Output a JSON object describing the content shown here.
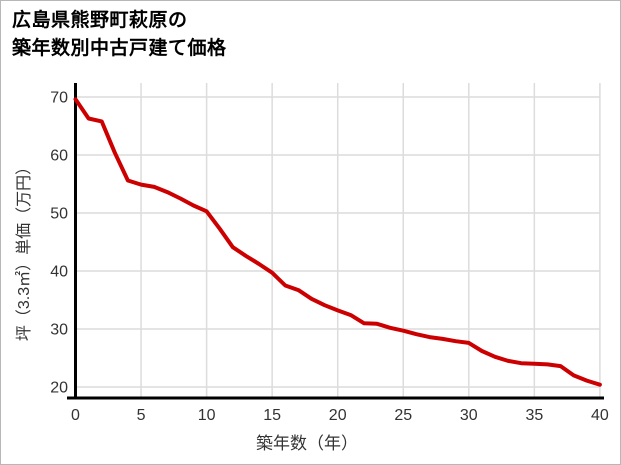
{
  "page": {
    "background": "#ffffff",
    "border_color": "#b7b7b7"
  },
  "title": {
    "full": "広島県熊野町萩原の築年数別中古戸建て価格",
    "line1": "広島県熊野町萩原の",
    "line2": "築年数別中古戸建て価格"
  },
  "chart_data": {
    "type": "line",
    "title": "広島県熊野町萩原の築年数別中古戸建て価格",
    "xlabel": "築年数（年）",
    "ylabel": "坪（3.3㎡）単価（万円）",
    "x": [
      0,
      1,
      2,
      3,
      4,
      5,
      6,
      7,
      8,
      9,
      10,
      11,
      12,
      13,
      14,
      15,
      16,
      17,
      18,
      19,
      20,
      21,
      22,
      23,
      24,
      25,
      26,
      27,
      28,
      29,
      30,
      31,
      32,
      33,
      34,
      35,
      36,
      37,
      38,
      39,
      40
    ],
    "values": [
      69.6,
      66.3,
      65.8,
      60.4,
      55.6,
      54.9,
      54.5,
      53.6,
      52.5,
      51.3,
      50.3,
      47.3,
      44.1,
      42.6,
      41.2,
      39.7,
      37.5,
      36.7,
      35.2,
      34.1,
      33.2,
      32.4,
      31.0,
      30.9,
      30.2,
      29.7,
      29.1,
      28.6,
      28.3,
      27.9,
      27.6,
      26.2,
      25.2,
      24.5,
      24.1,
      24.0,
      23.9,
      23.6,
      22.0,
      21.1,
      20.4
    ],
    "x_ticks": [
      0,
      5,
      10,
      15,
      20,
      25,
      30,
      35,
      40
    ],
    "y_ticks": [
      20,
      30,
      40,
      50,
      60,
      70
    ],
    "xlim": [
      0,
      40
    ],
    "ylim": [
      20,
      72.4
    ],
    "grid": true,
    "legend": "none",
    "line_color": "#cc0000",
    "grid_color": "#dcdcdc",
    "axis_color": "#000000",
    "tick_color": "#333333"
  }
}
